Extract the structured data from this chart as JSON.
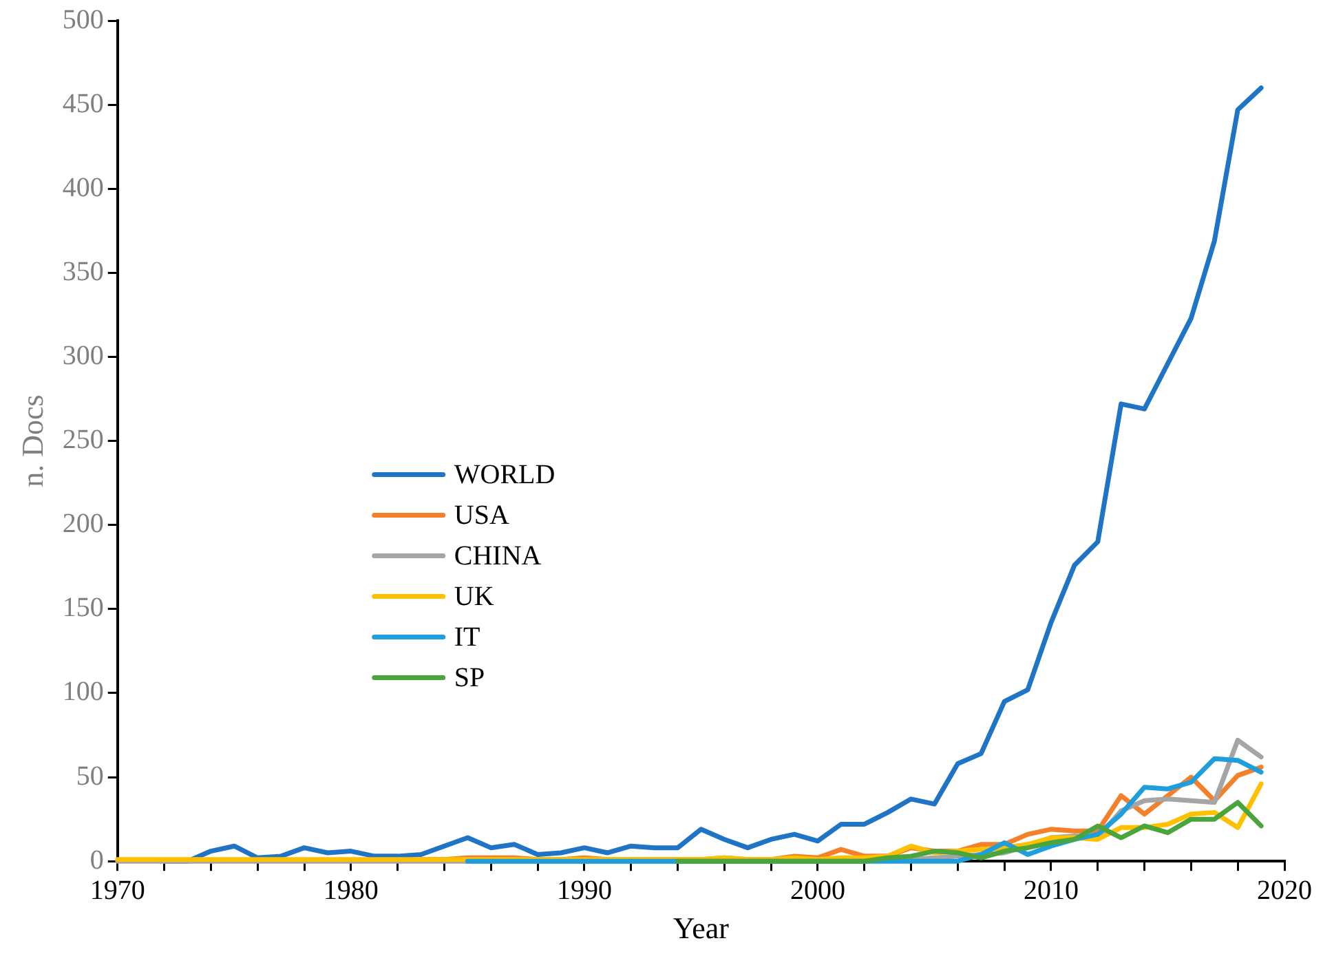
{
  "chart_data": {
    "type": "line",
    "xlabel": "Year",
    "ylabel": "n. Docs",
    "x": [
      1970,
      1971,
      1972,
      1973,
      1974,
      1975,
      1976,
      1977,
      1978,
      1979,
      1980,
      1981,
      1982,
      1983,
      1984,
      1985,
      1986,
      1987,
      1988,
      1989,
      1990,
      1991,
      1992,
      1993,
      1994,
      1995,
      1996,
      1997,
      1998,
      1999,
      2000,
      2001,
      2002,
      2003,
      2004,
      2005,
      2006,
      2007,
      2008,
      2009,
      2010,
      2011,
      2012,
      2013,
      2014,
      2015,
      2016,
      2017,
      2018,
      2019
    ],
    "series": [
      {
        "name": "WORLD",
        "color": "#1f74c6",
        "values": [
          null,
          null,
          0,
          0,
          6,
          9,
          2,
          3,
          8,
          5,
          6,
          3,
          3,
          4,
          9,
          14,
          8,
          10,
          4,
          5,
          8,
          5,
          9,
          8,
          8,
          19,
          13,
          8,
          13,
          16,
          12,
          22,
          22,
          29,
          37,
          34,
          58,
          64,
          95,
          102,
          142,
          176,
          190,
          272,
          269,
          296,
          323,
          369,
          447,
          460
        ]
      },
      {
        "name": "USA",
        "color": "#f5802a",
        "values": [
          null,
          null,
          null,
          null,
          null,
          null,
          null,
          null,
          null,
          null,
          null,
          null,
          null,
          1,
          1,
          2,
          2,
          2,
          1,
          1,
          2,
          1,
          1,
          1,
          1,
          1,
          2,
          1,
          1,
          3,
          2,
          7,
          3,
          3,
          8,
          6,
          6,
          10,
          10,
          16,
          19,
          18,
          18,
          39,
          28,
          39,
          50,
          36,
          51,
          56
        ]
      },
      {
        "name": "CHINA",
        "color": "#a5a5a5",
        "values": [
          0,
          0,
          0,
          0,
          0,
          0,
          0,
          0,
          0,
          0,
          0,
          0,
          0,
          0,
          0,
          0,
          0,
          0,
          0,
          0,
          0,
          0,
          0,
          0,
          0,
          0,
          0,
          0,
          0,
          0,
          0,
          0,
          0,
          1,
          1,
          2,
          3,
          4,
          5,
          9,
          14,
          15,
          14,
          30,
          36,
          37,
          36,
          35,
          72,
          62
        ]
      },
      {
        "name": "UK",
        "color": "#ffc000",
        "values": [
          1,
          1,
          1,
          1,
          1,
          1,
          1,
          1,
          1,
          1,
          1,
          1,
          1,
          1,
          1,
          1,
          1,
          1,
          1,
          1,
          1,
          1,
          1,
          1,
          1,
          1,
          2,
          1,
          1,
          2,
          1,
          2,
          2,
          3,
          9,
          5,
          6,
          7,
          8,
          10,
          14,
          14,
          13,
          20,
          20,
          22,
          28,
          29,
          20,
          46
        ]
      },
      {
        "name": "IT",
        "color": "#1e9fdb",
        "values": [
          null,
          null,
          null,
          null,
          null,
          null,
          null,
          null,
          null,
          null,
          null,
          null,
          null,
          null,
          null,
          0,
          0,
          0,
          0,
          0,
          0,
          0,
          0,
          0,
          0,
          0,
          0,
          0,
          0,
          0,
          0,
          0,
          0,
          0,
          0,
          0,
          0,
          4,
          11,
          4,
          9,
          13,
          16,
          28,
          44,
          43,
          47,
          61,
          60,
          53
        ]
      },
      {
        "name": "SP",
        "color": "#4aa63c",
        "values": [
          null,
          null,
          null,
          null,
          null,
          null,
          null,
          null,
          null,
          null,
          null,
          null,
          null,
          null,
          null,
          null,
          null,
          null,
          null,
          null,
          null,
          null,
          null,
          null,
          0,
          0,
          0,
          0,
          0,
          0,
          0,
          0,
          0,
          2,
          3,
          6,
          5,
          2,
          6,
          8,
          11,
          13,
          21,
          14,
          21,
          17,
          25,
          25,
          35,
          21
        ]
      }
    ],
    "xlim": [
      1970,
      2020
    ],
    "xticks": [
      1970,
      {
        "value": 1972,
        "label": null
      },
      {
        "value": 1974,
        "label": null
      },
      {
        "value": 1976,
        "label": null
      },
      {
        "value": 1978,
        "label": null
      },
      1980,
      {
        "value": 1982,
        "label": null
      },
      {
        "value": 1984,
        "label": null
      },
      {
        "value": 1986,
        "label": null
      },
      {
        "value": 1988,
        "label": null
      },
      1990,
      {
        "value": 1992,
        "label": null
      },
      {
        "value": 1994,
        "label": null
      },
      {
        "value": 1996,
        "label": null
      },
      {
        "value": 1998,
        "label": null
      },
      2000,
      {
        "value": 2002,
        "label": null
      },
      {
        "value": 2004,
        "label": null
      },
      {
        "value": 2006,
        "label": null
      },
      {
        "value": 2008,
        "label": null
      },
      2010,
      {
        "value": 2012,
        "label": null
      },
      {
        "value": 2014,
        "label": null
      },
      {
        "value": 2016,
        "label": null
      },
      {
        "value": 2018,
        "label": null
      },
      2020
    ],
    "ylim": [
      0,
      500
    ],
    "yticks": [
      0,
      50,
      100,
      150,
      200,
      250,
      300,
      350,
      400,
      450,
      500
    ],
    "grid": false,
    "legend": "left",
    "marker": "none",
    "line_style": "solid"
  }
}
